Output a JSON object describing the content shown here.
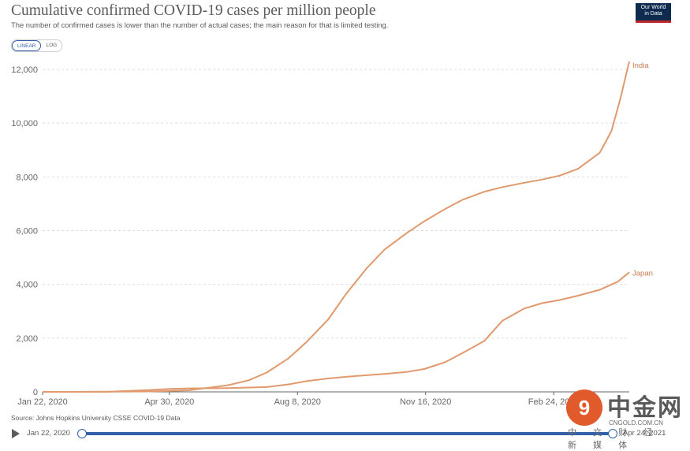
{
  "header": {
    "title": "Cumulative confirmed COVID-19 cases per million people",
    "subtitle": "The number of confirmed cases is lower than the number of actual cases; the main reason for that is limited testing.",
    "logo_line1": "Our World",
    "logo_line2": "in Data"
  },
  "toggle": {
    "linear_label": "LINEAR",
    "log_label": "LOG",
    "selected": "LINEAR"
  },
  "footer": {
    "source": "Source: Johns Hopkins University CSSE COVID-19 Data"
  },
  "timeline": {
    "start_label": "Jan 22, 2020",
    "end_label": "Apr 24, 2021"
  },
  "watermark": {
    "name": "中金网",
    "domain": "CNGOLD.COM.CN",
    "tagline": "中 文 财 经 新 媒 体"
  },
  "colors": {
    "line": "#e09a6e",
    "label": "#c77b4e",
    "grid": "#dddddd",
    "axis": "#666666",
    "accent": "#3360a9"
  },
  "chart_data": {
    "type": "line",
    "title": "Cumulative confirmed COVID-19 cases per million people",
    "xlabel": "",
    "ylabel": "",
    "xlim": [
      "2020-01-22",
      "2021-04-24"
    ],
    "ylim": [
      0,
      12000
    ],
    "y_ticks": [
      0,
      2000,
      4000,
      6000,
      8000,
      10000,
      12000
    ],
    "y_tick_labels": [
      "0",
      "2,000",
      "4,000",
      "6,000",
      "8,000",
      "10,000",
      "12,000"
    ],
    "x_ticks": [
      "2020-01-22",
      "2020-04-30",
      "2020-08-08",
      "2020-11-16",
      "2021-02-24"
    ],
    "x_tick_labels": [
      "Jan 22, 2020",
      "Apr 30, 2020",
      "Aug 8, 2020",
      "Nov 16, 2020",
      "Feb 24, 2021"
    ],
    "grid": "horizontal dashed",
    "series": [
      {
        "name": "India",
        "points": [
          [
            "2020-01-22",
            0
          ],
          [
            "2020-03-15",
            5
          ],
          [
            "2020-04-15",
            15
          ],
          [
            "2020-05-15",
            60
          ],
          [
            "2020-06-15",
            250
          ],
          [
            "2020-07-01",
            430
          ],
          [
            "2020-07-15",
            720
          ],
          [
            "2020-08-01",
            1250
          ],
          [
            "2020-08-15",
            1850
          ],
          [
            "2020-09-01",
            2700
          ],
          [
            "2020-09-15",
            3650
          ],
          [
            "2020-10-01",
            4600
          ],
          [
            "2020-10-15",
            5300
          ],
          [
            "2020-11-01",
            5900
          ],
          [
            "2020-11-15",
            6350
          ],
          [
            "2020-12-01",
            6800
          ],
          [
            "2020-12-15",
            7150
          ],
          [
            "2021-01-01",
            7450
          ],
          [
            "2021-01-15",
            7620
          ],
          [
            "2021-02-01",
            7780
          ],
          [
            "2021-02-15",
            7900
          ],
          [
            "2021-03-01",
            8050
          ],
          [
            "2021-03-15",
            8300
          ],
          [
            "2021-04-01",
            8900
          ],
          [
            "2021-04-10",
            9700
          ],
          [
            "2021-04-17",
            10900
          ],
          [
            "2021-04-24",
            12300
          ]
        ]
      },
      {
        "name": "Japan",
        "points": [
          [
            "2020-01-22",
            0
          ],
          [
            "2020-03-15",
            5
          ],
          [
            "2020-04-15",
            70
          ],
          [
            "2020-04-30",
            110
          ],
          [
            "2020-05-15",
            130
          ],
          [
            "2020-06-15",
            140
          ],
          [
            "2020-07-15",
            180
          ],
          [
            "2020-08-01",
            280
          ],
          [
            "2020-08-15",
            400
          ],
          [
            "2020-09-01",
            500
          ],
          [
            "2020-09-15",
            560
          ],
          [
            "2020-10-01",
            620
          ],
          [
            "2020-10-15",
            670
          ],
          [
            "2020-11-01",
            740
          ],
          [
            "2020-11-15",
            850
          ],
          [
            "2020-12-01",
            1100
          ],
          [
            "2020-12-15",
            1450
          ],
          [
            "2021-01-01",
            1900
          ],
          [
            "2021-01-15",
            2650
          ],
          [
            "2021-02-01",
            3100
          ],
          [
            "2021-02-15",
            3300
          ],
          [
            "2021-03-01",
            3420
          ],
          [
            "2021-03-15",
            3580
          ],
          [
            "2021-04-01",
            3800
          ],
          [
            "2021-04-15",
            4100
          ],
          [
            "2021-04-24",
            4450
          ]
        ]
      }
    ]
  }
}
